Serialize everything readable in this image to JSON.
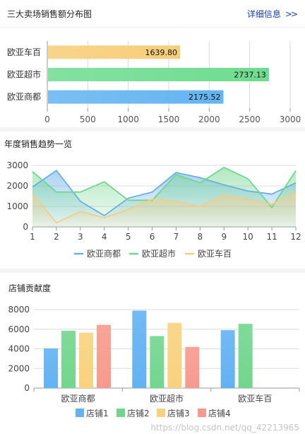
{
  "panels": {
    "sales": {
      "title": "三大卖场销售额分布图",
      "more_label": "详细信息",
      "more_icon": "double-chevron-right"
    },
    "trend": {
      "title": "年度销售趋势一览"
    },
    "contrib": {
      "title": "店铺贡献度"
    }
  },
  "watermark": "https://blog.csdn.net/qq_42213965",
  "chart_data": [
    {
      "type": "bar",
      "orientation": "horizontal",
      "categories": [
        "欧亚商都",
        "欧亚超市",
        "欧亚车百"
      ],
      "values": [
        2175.52,
        2737.13,
        1639.8
      ],
      "value_labels": [
        "2175.52",
        "2737.13",
        "1639.80"
      ],
      "colors": [
        "#63b4f2",
        "#6edc90",
        "#f7cd78"
      ],
      "xlim": [
        0,
        3000
      ],
      "xticks": [
        "0",
        "500",
        "1000",
        "1500",
        "2000",
        "2500",
        "3000"
      ],
      "grid": true
    },
    {
      "type": "area",
      "x": [
        1,
        2,
        3,
        4,
        5,
        6,
        7,
        8,
        9,
        10,
        11,
        12
      ],
      "xticks": [
        "1",
        "2",
        "3",
        "4",
        "5",
        "6",
        "7",
        "8",
        "9",
        "10",
        "11",
        "12"
      ],
      "ylim": [
        0,
        3000
      ],
      "yticks": [
        "0",
        "1000",
        "2000",
        "3000"
      ],
      "series": [
        {
          "name": "欧亚商都",
          "color": "#6aaee8",
          "values": [
            1950,
            2750,
            1250,
            550,
            1400,
            1700,
            2650,
            2400,
            2050,
            1750,
            1600,
            2150
          ]
        },
        {
          "name": "欧亚超市",
          "color": "#72d68e",
          "values": [
            2700,
            1700,
            1700,
            2200,
            1300,
            1300,
            2550,
            2150,
            2900,
            2350,
            950,
            2750
          ]
        },
        {
          "name": "欧亚车百",
          "color": "#f4cd82",
          "values": [
            1600,
            200,
            750,
            450,
            850,
            1350,
            1250,
            1000,
            1550,
            1350,
            1100,
            1700
          ]
        }
      ],
      "legend_position": "bottom",
      "grid": true
    },
    {
      "type": "bar",
      "orientation": "vertical",
      "categories": [
        "欧亚商都",
        "欧亚超市",
        "欧亚车百"
      ],
      "ylim": [
        0,
        8000
      ],
      "yticks": [
        "0",
        "2000",
        "4000",
        "6000",
        "8000"
      ],
      "series": [
        {
          "name": "店铺1",
          "color": "#62b2f2",
          "values": [
            4050,
            7900,
            5900
          ]
        },
        {
          "name": "店铺2",
          "color": "#72d68e",
          "values": [
            5850,
            5300,
            6550
          ]
        },
        {
          "name": "店铺3",
          "color": "#f8d27e",
          "values": [
            5650,
            6650,
            null
          ]
        },
        {
          "name": "店铺4",
          "color": "#f79a8e",
          "values": [
            6450,
            4200,
            null
          ]
        }
      ],
      "legend_position": "bottom",
      "grid": true
    }
  ]
}
